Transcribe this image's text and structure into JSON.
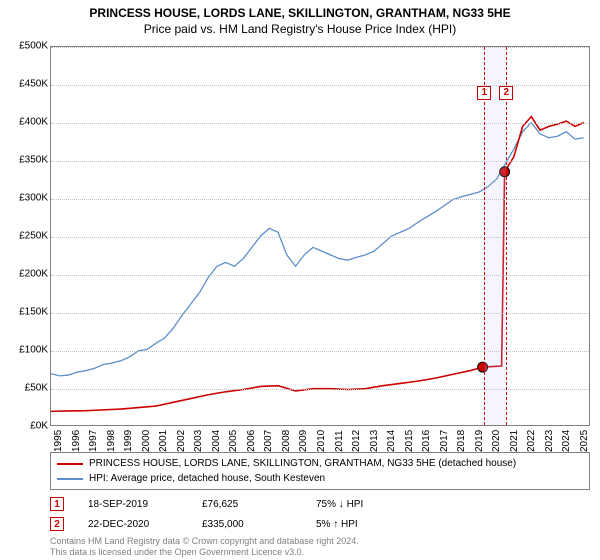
{
  "title": "PRINCESS HOUSE, LORDS LANE, SKILLINGTON, GRANTHAM, NG33 5HE",
  "subtitle": "Price paid vs. HM Land Registry's House Price Index (HPI)",
  "chart": {
    "type": "line",
    "background_color": "#ffffff",
    "border_color": "#808080",
    "grid_color": "#c0c0c0",
    "ylim": [
      0,
      500000
    ],
    "ytick_step": 50000,
    "yticks": [
      "£0K",
      "£50K",
      "£100K",
      "£150K",
      "£200K",
      "£250K",
      "£300K",
      "£350K",
      "£400K",
      "£450K",
      "£500K"
    ],
    "xlim": [
      1995,
      2025.8
    ],
    "xticks": [
      1995,
      1996,
      1997,
      1998,
      1999,
      2000,
      2001,
      2002,
      2003,
      2004,
      2005,
      2006,
      2007,
      2008,
      2009,
      2010,
      2011,
      2012,
      2013,
      2014,
      2015,
      2016,
      2017,
      2018,
      2019,
      2020,
      2021,
      2022,
      2023,
      2024,
      2025
    ],
    "band": {
      "start_year": 2019.71,
      "end_year": 2020.97,
      "color": "rgba(200,200,255,0.18)"
    },
    "vlines": [
      {
        "year": 2019.71,
        "color": "#cc0000",
        "dash": "4,3"
      },
      {
        "year": 2020.97,
        "color": "#cc0000",
        "dash": "4,3"
      }
    ],
    "callout_boxes": [
      {
        "label": "1",
        "year": 2019.71,
        "y": 440000
      },
      {
        "label": "2",
        "year": 2020.97,
        "y": 440000
      }
    ],
    "series": [
      {
        "name": "PRINCESS HOUSE, LORDS LANE, SKILLINGTON, GRANTHAM, NG33 5HE (detached house)",
        "color": "#cc0000",
        "line_width": 1.6,
        "data": [
          [
            1995,
            18000
          ],
          [
            1996,
            18500
          ],
          [
            1997,
            19000
          ],
          [
            1998,
            20000
          ],
          [
            1999,
            21000
          ],
          [
            2000,
            23000
          ],
          [
            2001,
            25000
          ],
          [
            2002,
            30000
          ],
          [
            2003,
            35000
          ],
          [
            2004,
            40000
          ],
          [
            2005,
            44000
          ],
          [
            2006,
            47000
          ],
          [
            2007,
            51000
          ],
          [
            2008,
            52000
          ],
          [
            2009,
            45000
          ],
          [
            2010,
            48000
          ],
          [
            2011,
            48000
          ],
          [
            2012,
            47000
          ],
          [
            2013,
            48000
          ],
          [
            2014,
            52000
          ],
          [
            2015,
            55000
          ],
          [
            2016,
            58000
          ],
          [
            2017,
            62000
          ],
          [
            2018,
            67000
          ],
          [
            2019,
            72000
          ],
          [
            2019.71,
            76625
          ],
          [
            2020,
            77000
          ],
          [
            2020.8,
            78000
          ],
          [
            2020.97,
            335000
          ],
          [
            2021.5,
            355000
          ],
          [
            2022,
            395000
          ],
          [
            2022.5,
            408000
          ],
          [
            2023,
            390000
          ],
          [
            2023.5,
            395000
          ],
          [
            2024,
            398000
          ],
          [
            2024.5,
            402000
          ],
          [
            2025,
            395000
          ],
          [
            2025.5,
            400000
          ]
        ],
        "markers": [
          {
            "x": 2019.71,
            "y": 76625,
            "style": "circle",
            "size": 5,
            "fill": "#cc0000",
            "stroke": "#000000"
          },
          {
            "x": 2020.97,
            "y": 335000,
            "style": "circle",
            "size": 5,
            "fill": "#cc0000",
            "stroke": "#000000"
          }
        ]
      },
      {
        "name": "HPI: Average price, detached house, South Kesteven",
        "color": "#5b8ecb",
        "line_width": 1.3,
        "data": [
          [
            1995,
            68000
          ],
          [
            1995.5,
            65000
          ],
          [
            1996,
            66000
          ],
          [
            1996.5,
            70000
          ],
          [
            1997,
            72000
          ],
          [
            1997.5,
            75000
          ],
          [
            1998,
            80000
          ],
          [
            1998.5,
            82000
          ],
          [
            1999,
            85000
          ],
          [
            1999.5,
            90000
          ],
          [
            2000,
            98000
          ],
          [
            2000.5,
            100000
          ],
          [
            2001,
            108000
          ],
          [
            2001.5,
            115000
          ],
          [
            2002,
            128000
          ],
          [
            2002.5,
            145000
          ],
          [
            2003,
            160000
          ],
          [
            2003.5,
            175000
          ],
          [
            2004,
            195000
          ],
          [
            2004.5,
            210000
          ],
          [
            2005,
            215000
          ],
          [
            2005.5,
            210000
          ],
          [
            2006,
            220000
          ],
          [
            2006.5,
            235000
          ],
          [
            2007,
            250000
          ],
          [
            2007.5,
            260000
          ],
          [
            2008,
            255000
          ],
          [
            2008.5,
            225000
          ],
          [
            2009,
            210000
          ],
          [
            2009.5,
            225000
          ],
          [
            2010,
            235000
          ],
          [
            2010.5,
            230000
          ],
          [
            2011,
            225000
          ],
          [
            2011.5,
            220000
          ],
          [
            2012,
            218000
          ],
          [
            2012.5,
            222000
          ],
          [
            2013,
            225000
          ],
          [
            2013.5,
            230000
          ],
          [
            2014,
            240000
          ],
          [
            2014.5,
            250000
          ],
          [
            2015,
            255000
          ],
          [
            2015.5,
            260000
          ],
          [
            2016,
            268000
          ],
          [
            2016.5,
            275000
          ],
          [
            2017,
            282000
          ],
          [
            2017.5,
            290000
          ],
          [
            2018,
            298000
          ],
          [
            2018.5,
            302000
          ],
          [
            2019,
            305000
          ],
          [
            2019.5,
            308000
          ],
          [
            2020,
            315000
          ],
          [
            2020.5,
            325000
          ],
          [
            2021,
            345000
          ],
          [
            2021.5,
            365000
          ],
          [
            2022,
            388000
          ],
          [
            2022.5,
            400000
          ],
          [
            2023,
            385000
          ],
          [
            2023.5,
            380000
          ],
          [
            2024,
            382000
          ],
          [
            2024.5,
            388000
          ],
          [
            2025,
            378000
          ],
          [
            2025.5,
            380000
          ]
        ]
      }
    ]
  },
  "legend": {
    "items": [
      {
        "color": "#cc0000",
        "label": "PRINCESS HOUSE, LORDS LANE, SKILLINGTON, GRANTHAM, NG33 5HE (detached house)"
      },
      {
        "color": "#5b8ecb",
        "label": "HPI: Average price, detached house, South Kesteven"
      }
    ]
  },
  "transactions": [
    {
      "num": "1",
      "date": "18-SEP-2019",
      "price": "£76,625",
      "pct": "75%",
      "arrow": "↓",
      "suffix": "HPI"
    },
    {
      "num": "2",
      "date": "22-DEC-2020",
      "price": "£335,000",
      "pct": "5%",
      "arrow": "↑",
      "suffix": "HPI"
    }
  ],
  "footer": "Contains HM Land Registry data © Crown copyright and database right 2024.\nThis data is licensed under the Open Government Licence v3.0."
}
